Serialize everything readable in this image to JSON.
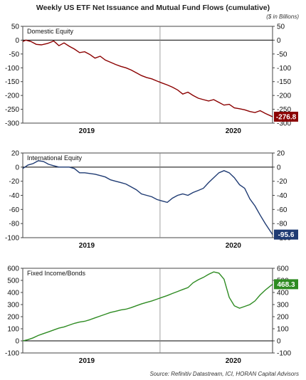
{
  "title": "Weekly US ETF Net Issuance and Mutual Fund Flows (cumulative)",
  "units": "($ in Billions)",
  "source": "Source: Refinitiv Datastream, ICI, HORAN Capital Advisors",
  "chart_data": [
    {
      "type": "line",
      "title": "Domestic Equity",
      "color": "#8b0000",
      "ylim": [
        -300,
        50
      ],
      "yticks": [
        50,
        0,
        -50,
        -100,
        -150,
        -200,
        -250,
        -300
      ],
      "year_labels": [
        "2019",
        "2020"
      ],
      "year_label_x": [
        0.62,
        2.04
      ],
      "year_dividers": [
        1.33
      ],
      "last_value_label": "-276.8",
      "x_range": [
        0,
        2.42
      ],
      "series": [
        {
          "x": [
            0,
            0.03,
            0.08,
            0.13,
            0.18,
            0.24,
            0.3,
            0.35,
            0.4,
            0.45,
            0.5,
            0.55,
            0.6,
            0.65,
            0.7,
            0.75,
            0.8,
            0.85,
            0.9,
            0.95,
            1.0,
            1.05,
            1.1,
            1.15,
            1.2,
            1.25,
            1.3,
            1.35,
            1.4,
            1.45,
            1.5,
            1.55,
            1.6,
            1.65,
            1.7,
            1.75,
            1.8,
            1.85,
            1.9,
            1.95,
            2.0,
            2.05,
            2.1,
            2.15,
            2.2,
            2.25,
            2.3,
            2.35,
            2.42
          ],
          "y": [
            -5,
            0,
            -5,
            -15,
            -17,
            -12,
            -3,
            -20,
            -10,
            -22,
            -32,
            -45,
            -42,
            -52,
            -65,
            -58,
            -72,
            -80,
            -88,
            -95,
            -100,
            -108,
            -118,
            -128,
            -135,
            -140,
            -148,
            -155,
            -162,
            -170,
            -180,
            -195,
            -188,
            -200,
            -210,
            -215,
            -220,
            -215,
            -225,
            -235,
            -232,
            -245,
            -248,
            -252,
            -258,
            -262,
            -255,
            -265,
            -276.8
          ]
        }
      ]
    },
    {
      "type": "line",
      "title": "International Equity",
      "color": "#1f3b73",
      "ylim": [
        -100,
        20
      ],
      "yticks": [
        20,
        0,
        -20,
        -40,
        -60,
        -80,
        -100
      ],
      "year_labels": [
        "2019",
        "2020"
      ],
      "year_label_x": [
        0.62,
        2.04
      ],
      "year_dividers": [
        1.33
      ],
      "last_value_label": "-95.6",
      "x_range": [
        0,
        2.42
      ],
      "series": [
        {
          "x": [
            0,
            0.05,
            0.1,
            0.15,
            0.2,
            0.25,
            0.3,
            0.35,
            0.4,
            0.45,
            0.5,
            0.55,
            0.6,
            0.65,
            0.7,
            0.75,
            0.8,
            0.85,
            0.9,
            0.95,
            1.0,
            1.05,
            1.1,
            1.15,
            1.2,
            1.25,
            1.3,
            1.35,
            1.4,
            1.45,
            1.5,
            1.55,
            1.6,
            1.65,
            1.7,
            1.75,
            1.8,
            1.85,
            1.9,
            1.95,
            2.0,
            2.05,
            2.1,
            2.15,
            2.2,
            2.25,
            2.3,
            2.35,
            2.42
          ],
          "y": [
            -2,
            3,
            5,
            9,
            8,
            4,
            2,
            0,
            0,
            0,
            -2,
            -8,
            -8,
            -9,
            -10,
            -12,
            -14,
            -18,
            -20,
            -22,
            -24,
            -28,
            -32,
            -38,
            -40,
            -42,
            -46,
            -48,
            -50,
            -44,
            -40,
            -38,
            -40,
            -36,
            -33,
            -30,
            -22,
            -15,
            -8,
            -5,
            -8,
            -15,
            -25,
            -30,
            -45,
            -55,
            -68,
            -80,
            -95.6
          ]
        }
      ]
    },
    {
      "type": "line",
      "title": "Fixed Income/Bonds",
      "color": "#2e8b22",
      "ylim": [
        -100,
        600
      ],
      "yticks": [
        600,
        500,
        400,
        300,
        200,
        100,
        0,
        -100
      ],
      "year_labels": [
        "2019",
        "2020"
      ],
      "year_label_x": [
        0.62,
        2.04
      ],
      "year_dividers": [
        1.33
      ],
      "last_value_label": "468.3",
      "x_range": [
        0,
        2.42
      ],
      "series": [
        {
          "x": [
            0,
            0.05,
            0.1,
            0.15,
            0.2,
            0.25,
            0.3,
            0.35,
            0.4,
            0.45,
            0.5,
            0.55,
            0.6,
            0.65,
            0.7,
            0.75,
            0.8,
            0.85,
            0.9,
            0.95,
            1.0,
            1.05,
            1.1,
            1.15,
            1.2,
            1.25,
            1.3,
            1.35,
            1.4,
            1.45,
            1.5,
            1.55,
            1.6,
            1.65,
            1.7,
            1.75,
            1.8,
            1.85,
            1.9,
            1.95,
            2.0,
            2.05,
            2.1,
            2.15,
            2.2,
            2.25,
            2.3,
            2.35,
            2.42
          ],
          "y": [
            0,
            10,
            25,
            45,
            60,
            75,
            90,
            105,
            115,
            130,
            145,
            155,
            162,
            175,
            190,
            205,
            220,
            235,
            245,
            255,
            262,
            275,
            290,
            305,
            318,
            330,
            345,
            360,
            375,
            392,
            408,
            425,
            440,
            480,
            505,
            525,
            550,
            570,
            560,
            510,
            360,
            290,
            270,
            285,
            300,
            330,
            380,
            420,
            468.3
          ]
        }
      ]
    }
  ]
}
